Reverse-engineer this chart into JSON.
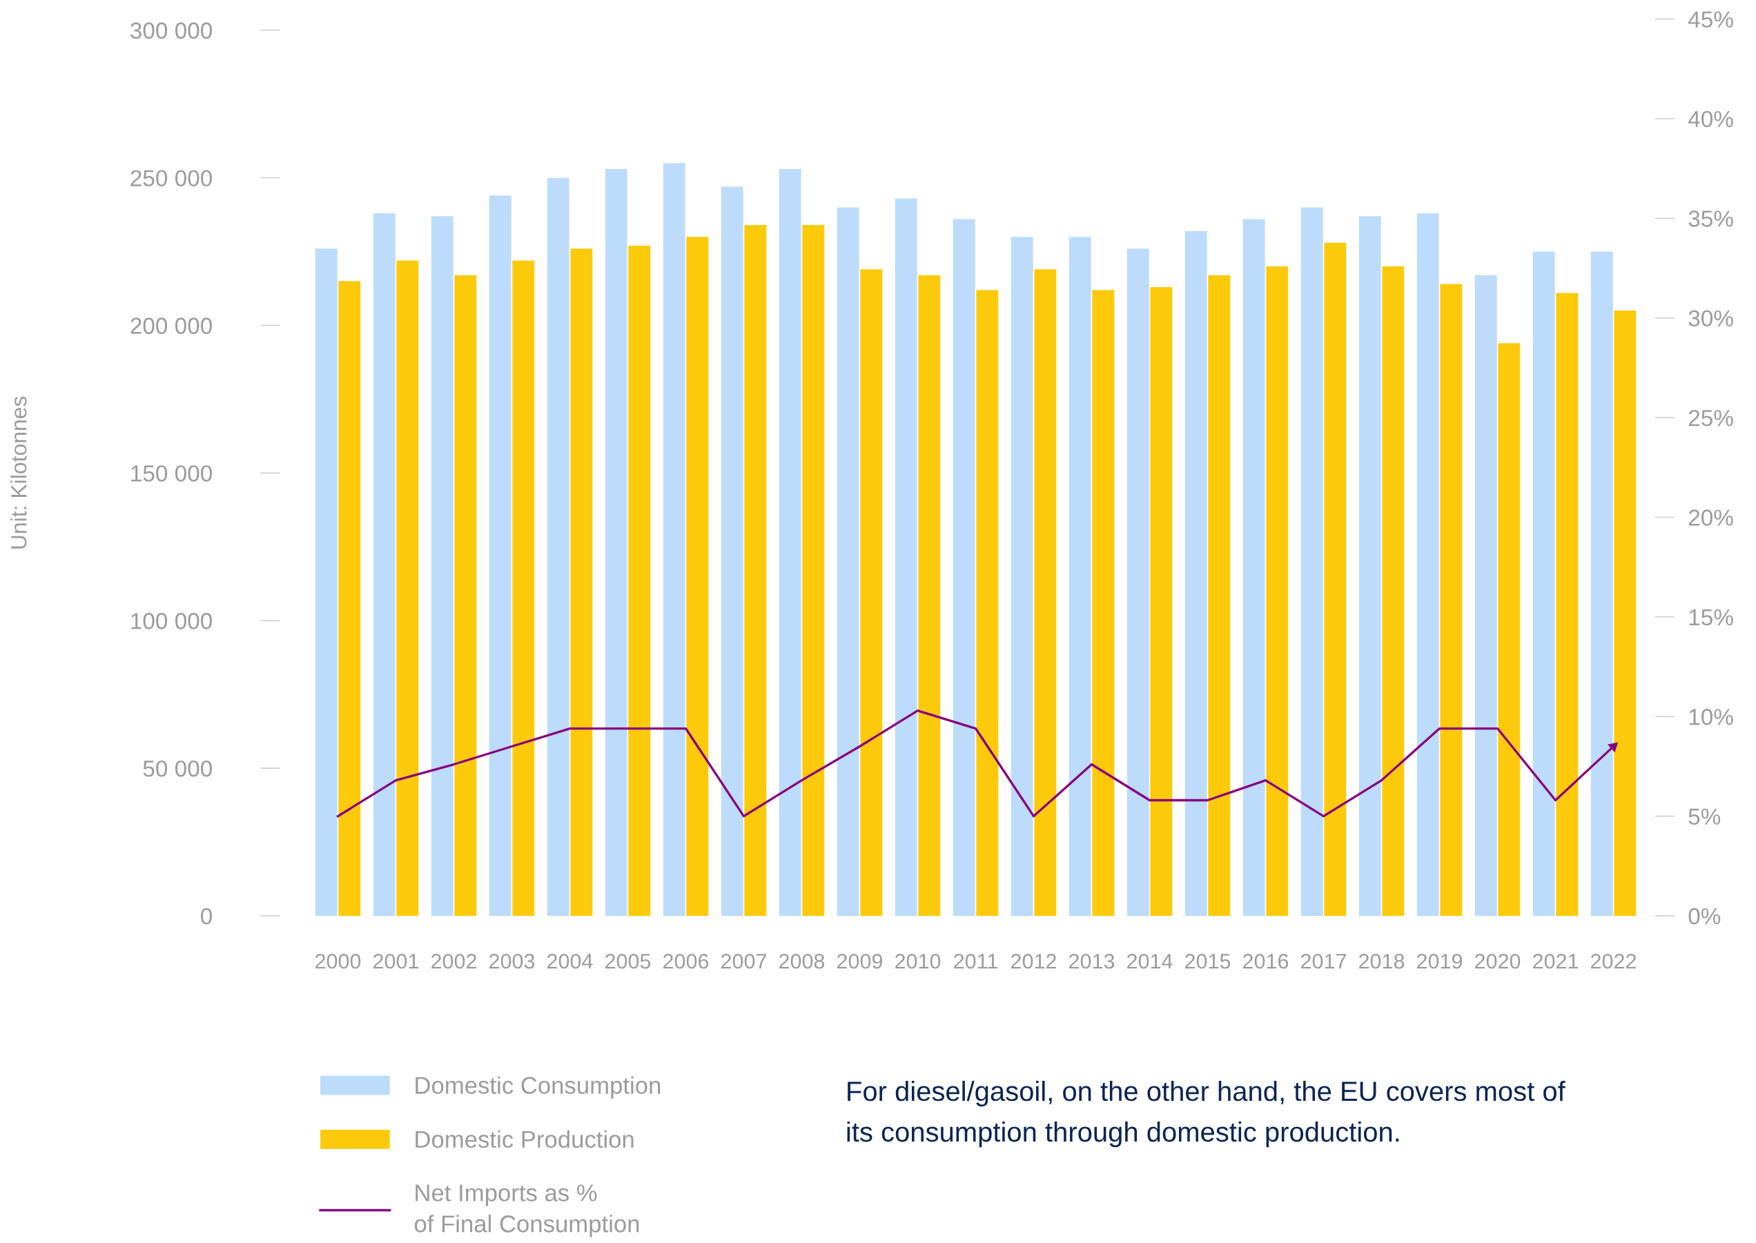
{
  "chart_data": {
    "type": "bar",
    "ylabel": "Unit: Kilotonnes",
    "categories": [
      "2000",
      "2001",
      "2002",
      "2003",
      "2004",
      "2005",
      "2006",
      "2007",
      "2008",
      "2009",
      "2010",
      "2011",
      "2012",
      "2013",
      "2014",
      "2015",
      "2016",
      "2017",
      "2018",
      "2019",
      "2020",
      "2021",
      "2022"
    ],
    "series": [
      {
        "name": "Domestic Consumption",
        "color": "#bddcfc",
        "values": [
          226000,
          238000,
          237000,
          244000,
          250000,
          253000,
          255000,
          247000,
          253000,
          240000,
          243000,
          236000,
          230000,
          230000,
          226000,
          232000,
          236000,
          240000,
          237000,
          238000,
          217000,
          225000,
          225000
        ]
      },
      {
        "name": "Domestic Production",
        "color": "#fdca0b",
        "values": [
          215000,
          222000,
          217000,
          222000,
          226000,
          227000,
          230000,
          234000,
          234000,
          219000,
          217000,
          212000,
          219000,
          212000,
          213000,
          217000,
          220000,
          228000,
          220000,
          214000,
          194000,
          211000,
          205000
        ]
      },
      {
        "name": "Net Imports as %\nof Final Consumption",
        "type": "line",
        "axis": "y2",
        "color": "#87037f",
        "values": [
          5.0,
          6.8,
          7.6,
          8.5,
          9.4,
          9.4,
          9.4,
          5.0,
          6.8,
          8.5,
          10.3,
          9.4,
          5.0,
          7.6,
          5.8,
          5.8,
          6.8,
          5.0,
          6.8,
          9.4,
          9.4,
          5.8,
          8.5
        ]
      }
    ],
    "ylim": [
      0,
      300000
    ],
    "yticks": [
      0,
      {
        "value": 50000,
        "label": "50 000"
      },
      {
        "value": 100000,
        "label": "100 000"
      },
      {
        "value": 150000,
        "label": "150 000"
      },
      {
        "value": 200000,
        "label": "200 000"
      },
      {
        "value": 250000,
        "label": "250 000"
      },
      {
        "value": 300000,
        "label": "300 000"
      }
    ],
    "y2lim": [
      0,
      45
    ],
    "y2ticks": [
      {
        "value": 0,
        "label": "0%"
      },
      {
        "value": 5,
        "label": "5%"
      },
      {
        "value": 10,
        "label": "10%"
      },
      {
        "value": 15,
        "label": "15%"
      },
      {
        "value": 20,
        "label": "20%"
      },
      {
        "value": 25,
        "label": "25%"
      },
      {
        "value": 30,
        "label": "30%"
      },
      {
        "value": 35,
        "label": "35%"
      },
      {
        "value": 40,
        "label": "40%"
      },
      {
        "value": 45,
        "label": "45%"
      }
    ],
    "legend": "bottom",
    "line_style": "solid",
    "annotations": [
      "For diesel/gasoil, on the other hand, the EU covers most of\nits consumption through domestic production."
    ]
  }
}
